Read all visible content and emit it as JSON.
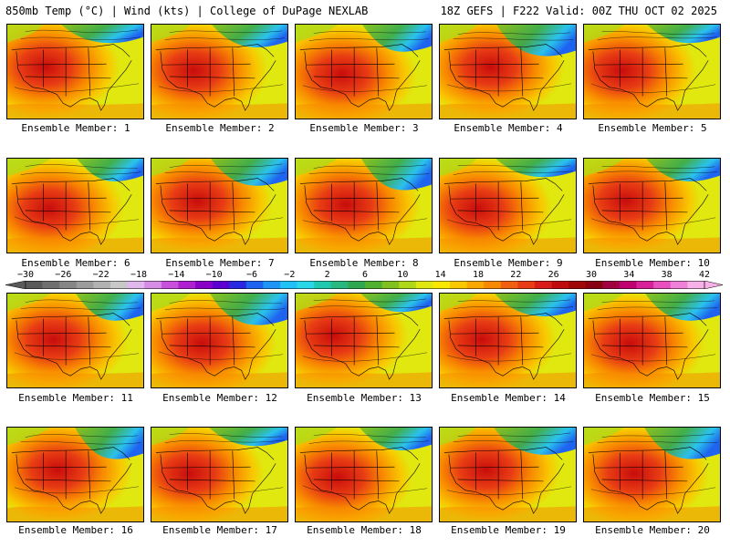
{
  "header": {
    "left_title": "850mb Temp (°C) | Wind (kts) | College of DuPage NEXLAB",
    "right_title": "18Z GEFS | F222 Valid: 00Z THU OCT 02 2025"
  },
  "panels": [
    {
      "label": "Ensemble Member: 1"
    },
    {
      "label": "Ensemble Member: 2"
    },
    {
      "label": "Ensemble Member: 3"
    },
    {
      "label": "Ensemble Member: 4"
    },
    {
      "label": "Ensemble Member: 5"
    },
    {
      "label": "Ensemble Member: 6"
    },
    {
      "label": "Ensemble Member: 7"
    },
    {
      "label": "Ensemble Member: 8"
    },
    {
      "label": "Ensemble Member: 9"
    },
    {
      "label": "Ensemble Member: 10"
    },
    {
      "label": "Ensemble Member: 11"
    },
    {
      "label": "Ensemble Member: 12"
    },
    {
      "label": "Ensemble Member: 13"
    },
    {
      "label": "Ensemble Member: 14"
    },
    {
      "label": "Ensemble Member: 15"
    },
    {
      "label": "Ensemble Member: 16"
    },
    {
      "label": "Ensemble Member: 17"
    },
    {
      "label": "Ensemble Member: 18"
    },
    {
      "label": "Ensemble Member: 19"
    },
    {
      "label": "Ensemble Member: 20"
    }
  ],
  "colorbar": {
    "labels": [
      "−30",
      "−26",
      "−22",
      "−18",
      "−14",
      "−10",
      "−6",
      "−2",
      "2",
      "6",
      "10",
      "14",
      "18",
      "22",
      "26",
      "30",
      "34",
      "38",
      "42"
    ],
    "colors": [
      "#5a5a5a",
      "#707070",
      "#868686",
      "#9c9c9c",
      "#b2b2b2",
      "#c8c8c8",
      "#e0b8ee",
      "#d78ce6",
      "#c850dc",
      "#b020d0",
      "#8a00c8",
      "#5a00d0",
      "#2828e0",
      "#1e64f0",
      "#1e96f8",
      "#20c0f8",
      "#28d8e8",
      "#20c8b0",
      "#28b880",
      "#30a850",
      "#50b030",
      "#80c020",
      "#b0d818",
      "#e0e810",
      "#f8e800",
      "#f8c800",
      "#f8a800",
      "#f88800",
      "#f06010",
      "#e83c14",
      "#d81c18",
      "#c00c0c",
      "#a00808",
      "#880010",
      "#a00040",
      "#c00070",
      "#d82098",
      "#e850c0",
      "#f080d8",
      "#f8b0e8"
    ]
  }
}
